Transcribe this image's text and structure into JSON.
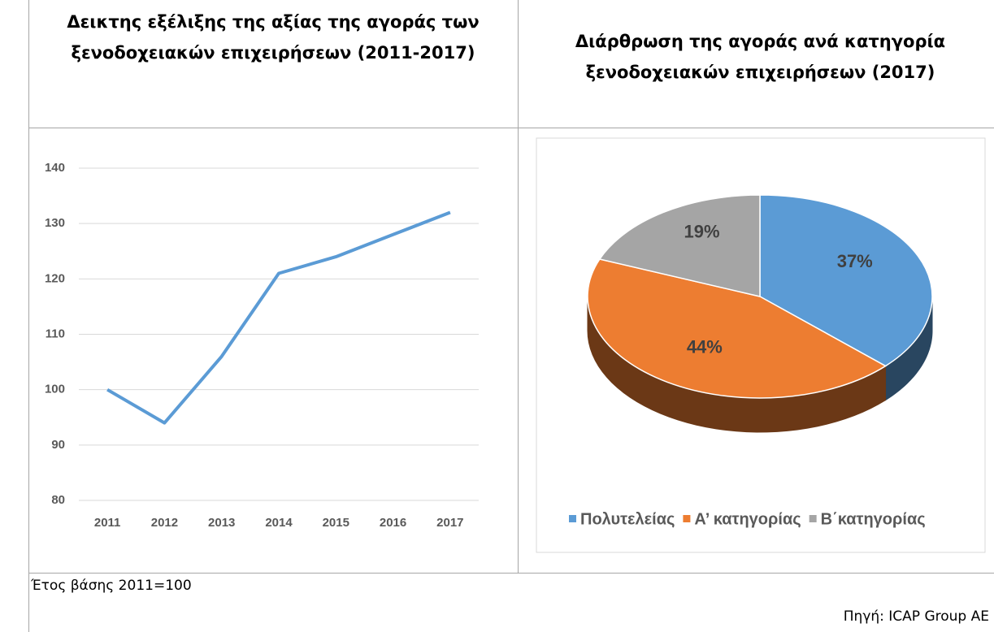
{
  "chart_data": [
    {
      "type": "line",
      "title": "Δεικτης εξέλιξης της αξίας της αγοράς των ξενοδοχειακών επιχειρήσεων (2011-2017)",
      "categories": [
        "2011",
        "2012",
        "2013",
        "2014",
        "2015",
        "2016",
        "2017"
      ],
      "values": [
        100,
        94,
        106,
        121,
        124,
        128,
        132
      ],
      "color": "#5b9bd5",
      "ylim": [
        80,
        140
      ],
      "yticks": [
        80,
        90,
        100,
        110,
        120,
        130,
        140
      ],
      "grid": true
    },
    {
      "type": "pie",
      "title": "Διάρθρωση της αγοράς ανά κατηγορία ξενοδοχειακών επιχειρήσεων (2017)",
      "categories": [
        "Πολυτελείας",
        "Α’ κατηγορίας",
        "Β΄κατηγορίας"
      ],
      "values": [
        37,
        44,
        19
      ],
      "value_labels": [
        "37%",
        "44%",
        "19%"
      ],
      "colors": [
        "#5b9bd5",
        "#ed7d31",
        "#a5a5a5"
      ],
      "legend": "bottom"
    }
  ],
  "note": "Έτος βάσης 2011=100",
  "source": "Πηγή: ICAP Group AE"
}
